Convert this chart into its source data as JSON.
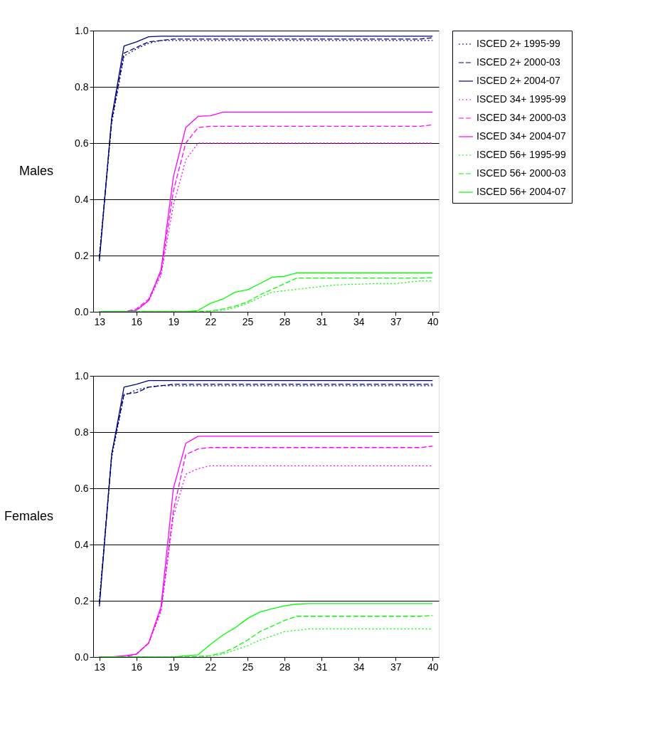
{
  "chart_data": [
    {
      "type": "line",
      "ylabel": "Males",
      "x": [
        13,
        14,
        15,
        16,
        17,
        18,
        19,
        20,
        21,
        22,
        23,
        24,
        25,
        26,
        27,
        28,
        29,
        30,
        31,
        32,
        33,
        34,
        35,
        36,
        37,
        38,
        39,
        40
      ],
      "xlim": [
        12.5,
        40.5
      ],
      "xticks": [
        13,
        16,
        19,
        22,
        25,
        28,
        31,
        34,
        37,
        40
      ],
      "ylim": [
        0,
        1
      ],
      "yticks": [
        {
          "value": 0,
          "label": "0.0"
        },
        {
          "value": 0.2,
          "label": "0.2"
        },
        {
          "value": 0.4,
          "label": "0.4"
        },
        {
          "value": 0.6,
          "label": "0.6"
        },
        {
          "value": 0.8,
          "label": "0.8"
        },
        {
          "value": 1,
          "label": "1.0"
        }
      ],
      "grid": "y",
      "legend": "right",
      "series": [
        {
          "name": "ISCED 2+ 1995-99",
          "color": "#000080",
          "line_style": "dotted",
          "values": [
            0.2,
            0.67,
            0.91,
            0.935,
            0.955,
            0.965,
            0.965,
            0.965,
            0.965,
            0.965,
            0.965,
            0.965,
            0.965,
            0.965,
            0.965,
            0.965,
            0.965,
            0.965,
            0.965,
            0.965,
            0.965,
            0.965,
            0.965,
            0.965,
            0.965,
            0.965,
            0.965,
            0.965
          ]
        },
        {
          "name": "ISCED 2+ 2000-03",
          "color": "#000080",
          "line_style": "dashed",
          "values": [
            0.19,
            0.68,
            0.92,
            0.94,
            0.96,
            0.965,
            0.97,
            0.97,
            0.97,
            0.97,
            0.97,
            0.97,
            0.97,
            0.97,
            0.97,
            0.97,
            0.97,
            0.97,
            0.97,
            0.97,
            0.97,
            0.97,
            0.97,
            0.97,
            0.97,
            0.97,
            0.97,
            0.975
          ]
        },
        {
          "name": "ISCED 2+ 2004-07",
          "color": "#000080",
          "line_style": "solid",
          "values": [
            0.18,
            0.69,
            0.945,
            0.96,
            0.978,
            0.98,
            0.98,
            0.98,
            0.98,
            0.98,
            0.98,
            0.98,
            0.98,
            0.98,
            0.98,
            0.98,
            0.98,
            0.98,
            0.98,
            0.98,
            0.98,
            0.98,
            0.98,
            0.98,
            0.98,
            0.98,
            0.98,
            0.98
          ]
        },
        {
          "name": "ISCED 34+ 1995-99",
          "color": "#ff00ff",
          "line_style": "dotted",
          "values": [
            0,
            0,
            0,
            0.005,
            0.04,
            0.13,
            0.38,
            0.54,
            0.6,
            0.6,
            0.6,
            0.6,
            0.6,
            0.6,
            0.6,
            0.6,
            0.6,
            0.6,
            0.6,
            0.6,
            0.6,
            0.6,
            0.6,
            0.6,
            0.6,
            0.6,
            0.6,
            0.6
          ]
        },
        {
          "name": "ISCED 34+ 2000-03",
          "color": "#ff00ff",
          "line_style": "dashed",
          "values": [
            0,
            0,
            0,
            0.01,
            0.045,
            0.14,
            0.43,
            0.6,
            0.655,
            0.66,
            0.66,
            0.66,
            0.66,
            0.66,
            0.66,
            0.66,
            0.66,
            0.66,
            0.66,
            0.66,
            0.66,
            0.66,
            0.66,
            0.66,
            0.66,
            0.66,
            0.66,
            0.665
          ]
        },
        {
          "name": "ISCED 34+ 2004-07",
          "color": "#ff00ff",
          "line_style": "solid",
          "values": [
            0,
            0,
            0,
            0.005,
            0.04,
            0.15,
            0.48,
            0.655,
            0.695,
            0.697,
            0.71,
            0.71,
            0.71,
            0.71,
            0.71,
            0.71,
            0.71,
            0.71,
            0.71,
            0.71,
            0.71,
            0.71,
            0.71,
            0.71,
            0.71,
            0.71,
            0.71,
            0.71
          ]
        },
        {
          "name": "ISCED 56+ 1995-99",
          "color": "#00ff00",
          "line_style": "dotted",
          "values": [
            0,
            0,
            0,
            0,
            0,
            0,
            0,
            0,
            0,
            0.002,
            0.005,
            0.015,
            0.03,
            0.05,
            0.07,
            0.075,
            0.08,
            0.085,
            0.09,
            0.095,
            0.097,
            0.098,
            0.1,
            0.1,
            0.1,
            0.105,
            0.11,
            0.11
          ]
        },
        {
          "name": "ISCED 56+ 2000-03",
          "color": "#00ff00",
          "line_style": "dashed",
          "values": [
            0,
            0,
            0,
            0,
            0,
            0,
            0,
            0,
            0,
            0.003,
            0.01,
            0.02,
            0.035,
            0.06,
            0.08,
            0.1,
            0.12,
            0.12,
            0.12,
            0.12,
            0.12,
            0.12,
            0.12,
            0.12,
            0.12,
            0.12,
            0.12,
            0.122
          ]
        },
        {
          "name": "ISCED 56+ 2004-07",
          "color": "#00ff00",
          "line_style": "solid",
          "values": [
            0,
            0,
            0,
            0,
            0,
            0,
            0,
            0,
            0.005,
            0.03,
            0.045,
            0.07,
            0.078,
            0.1,
            0.123,
            0.126,
            0.138,
            0.138,
            0.138,
            0.138,
            0.138,
            0.138,
            0.138,
            0.138,
            0.138,
            0.138,
            0.138,
            0.138
          ]
        }
      ]
    },
    {
      "type": "line",
      "ylabel": "Females",
      "x": [
        13,
        14,
        15,
        16,
        17,
        18,
        19,
        20,
        21,
        22,
        23,
        24,
        25,
        26,
        27,
        28,
        29,
        30,
        31,
        32,
        33,
        34,
        35,
        36,
        37,
        38,
        39,
        40
      ],
      "xlim": [
        12.5,
        40.5
      ],
      "xticks": [
        13,
        16,
        19,
        22,
        25,
        28,
        31,
        34,
        37,
        40
      ],
      "ylim": [
        0,
        1
      ],
      "yticks": [
        {
          "value": 0,
          "label": "0.0"
        },
        {
          "value": 0.2,
          "label": "0.2"
        },
        {
          "value": 0.4,
          "label": "0.4"
        },
        {
          "value": 0.6,
          "label": "0.6"
        },
        {
          "value": 0.8,
          "label": "0.8"
        },
        {
          "value": 1,
          "label": "1.0"
        }
      ],
      "grid": "y",
      "legend": "right",
      "series": [
        {
          "name": "ISCED 2+ 1995-99",
          "color": "#000080",
          "line_style": "dotted",
          "values": [
            0.2,
            0.71,
            0.93,
            0.95,
            0.96,
            0.965,
            0.965,
            0.965,
            0.965,
            0.965,
            0.965,
            0.965,
            0.965,
            0.965,
            0.965,
            0.965,
            0.965,
            0.965,
            0.965,
            0.965,
            0.965,
            0.965,
            0.965,
            0.965,
            0.965,
            0.965,
            0.965,
            0.965
          ]
        },
        {
          "name": "ISCED 2+ 2000-03",
          "color": "#000080",
          "line_style": "dashed",
          "values": [
            0.19,
            0.72,
            0.935,
            0.94,
            0.96,
            0.965,
            0.97,
            0.97,
            0.97,
            0.97,
            0.97,
            0.97,
            0.97,
            0.97,
            0.97,
            0.97,
            0.97,
            0.97,
            0.97,
            0.97,
            0.97,
            0.97,
            0.97,
            0.97,
            0.97,
            0.97,
            0.97,
            0.97
          ]
        },
        {
          "name": "ISCED 2+ 2004-07",
          "color": "#000080",
          "line_style": "solid",
          "values": [
            0.18,
            0.72,
            0.96,
            0.97,
            0.983,
            0.983,
            0.983,
            0.983,
            0.983,
            0.983,
            0.983,
            0.983,
            0.983,
            0.983,
            0.983,
            0.983,
            0.983,
            0.983,
            0.983,
            0.983,
            0.983,
            0.983,
            0.983,
            0.983,
            0.983,
            0.983,
            0.983,
            0.983
          ]
        },
        {
          "name": "ISCED 34+ 1995-99",
          "color": "#ff00ff",
          "line_style": "dotted",
          "values": [
            0,
            0,
            0,
            0.01,
            0.05,
            0.16,
            0.5,
            0.65,
            0.67,
            0.68,
            0.68,
            0.68,
            0.68,
            0.68,
            0.68,
            0.68,
            0.68,
            0.68,
            0.68,
            0.68,
            0.68,
            0.68,
            0.68,
            0.68,
            0.68,
            0.68,
            0.68,
            0.68
          ]
        },
        {
          "name": "ISCED 34+ 2000-03",
          "color": "#ff00ff",
          "line_style": "dashed",
          "values": [
            0,
            0,
            0,
            0.01,
            0.05,
            0.17,
            0.52,
            0.72,
            0.74,
            0.745,
            0.745,
            0.745,
            0.745,
            0.745,
            0.745,
            0.745,
            0.745,
            0.745,
            0.745,
            0.745,
            0.745,
            0.745,
            0.745,
            0.745,
            0.745,
            0.745,
            0.745,
            0.75
          ]
        },
        {
          "name": "ISCED 34+ 2004-07",
          "color": "#ff00ff",
          "line_style": "solid",
          "values": [
            0,
            0,
            0.005,
            0.01,
            0.05,
            0.18,
            0.6,
            0.76,
            0.785,
            0.785,
            0.785,
            0.785,
            0.785,
            0.785,
            0.785,
            0.785,
            0.785,
            0.785,
            0.785,
            0.785,
            0.785,
            0.785,
            0.785,
            0.785,
            0.785,
            0.785,
            0.785,
            0.785
          ]
        },
        {
          "name": "ISCED 56+ 1995-99",
          "color": "#00ff00",
          "line_style": "dotted",
          "values": [
            0,
            0,
            0,
            0,
            0,
            0,
            0,
            0,
            0,
            0.003,
            0.01,
            0.025,
            0.04,
            0.06,
            0.075,
            0.09,
            0.095,
            0.1,
            0.1,
            0.1,
            0.1,
            0.1,
            0.1,
            0.1,
            0.1,
            0.1,
            0.1,
            0.1
          ]
        },
        {
          "name": "ISCED 56+ 2000-03",
          "color": "#00ff00",
          "line_style": "dashed",
          "values": [
            0,
            0,
            0,
            0,
            0,
            0,
            0,
            0,
            0.002,
            0.005,
            0.015,
            0.035,
            0.06,
            0.09,
            0.11,
            0.13,
            0.145,
            0.145,
            0.145,
            0.145,
            0.145,
            0.145,
            0.145,
            0.145,
            0.145,
            0.145,
            0.145,
            0.148
          ]
        },
        {
          "name": "ISCED 56+ 2004-07",
          "color": "#00ff00",
          "line_style": "solid",
          "values": [
            0,
            0,
            0,
            0,
            0,
            0,
            0,
            0.005,
            0.008,
            0.045,
            0.078,
            0.104,
            0.137,
            0.16,
            0.172,
            0.182,
            0.188,
            0.19,
            0.19,
            0.19,
            0.19,
            0.19,
            0.19,
            0.19,
            0.19,
            0.19,
            0.19,
            0.19
          ]
        }
      ]
    }
  ]
}
